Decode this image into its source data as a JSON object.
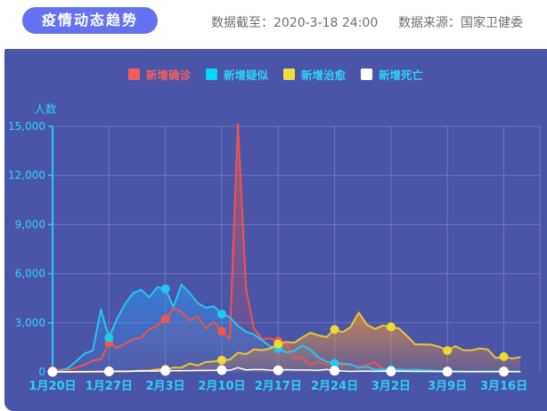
{
  "header": {
    "title": "疫情动态趋势",
    "data_cutoff": "数据截至：2020-3-18 24:00",
    "data_source": "数据来源：国家卫健委"
  },
  "colors": {
    "title_pill_bg": "#6372ee",
    "title_pill_text": "#ffffff",
    "header_meta_text": "#6e6e74",
    "panel_bg": "#4a55a8",
    "grid_line": "rgba(255,255,255,0.20)",
    "axis_line": "#29c8f0",
    "tick_text": "#2bd2f4"
  },
  "chart_data": {
    "type": "line",
    "title": "疫情动态趋势",
    "ylabel": "人数",
    "ylim": [
      0,
      15000
    ],
    "grid": true,
    "legend_position": "top",
    "marker_every": 7,
    "y_ticks": [
      {
        "label": "0",
        "value": 0
      },
      {
        "label": "3,000",
        "value": 3000
      },
      {
        "label": "6,000",
        "value": 6000
      },
      {
        "label": "9,000",
        "value": 9000
      },
      {
        "label": "12,000",
        "value": 12000
      },
      {
        "label": "15,000",
        "value": 15000
      }
    ],
    "x_ticks": [
      {
        "label": "1月20日",
        "index": 0
      },
      {
        "label": "1月27日",
        "index": 7
      },
      {
        "label": "2月3日",
        "index": 14
      },
      {
        "label": "2月10日",
        "index": 21
      },
      {
        "label": "2月17日",
        "index": 28
      },
      {
        "label": "2月24日",
        "index": 35
      },
      {
        "label": "3月2日",
        "index": 42
      },
      {
        "label": "3月9日",
        "index": 49
      },
      {
        "label": "3月16日",
        "index": 56
      }
    ],
    "dates": [
      "1月20日",
      "1月21日",
      "1月22日",
      "1月23日",
      "1月24日",
      "1月25日",
      "1月26日",
      "1月27日",
      "1月28日",
      "1月29日",
      "1月30日",
      "1月31日",
      "2月1日",
      "2月2日",
      "2月3日",
      "2月4日",
      "2月5日",
      "2月6日",
      "2月7日",
      "2月8日",
      "2月9日",
      "2月10日",
      "2月11日",
      "2月12日",
      "2月13日",
      "2月14日",
      "2月15日",
      "2月16日",
      "2月17日",
      "2月18日",
      "2月19日",
      "2月20日",
      "2月21日",
      "2月22日",
      "2月23日",
      "2月24日",
      "2月25日",
      "2月26日",
      "2月27日",
      "2月28日",
      "2月29日",
      "3月1日",
      "3月2日",
      "3月3日",
      "3月4日",
      "3月5日",
      "3月6日",
      "3月7日",
      "3月8日",
      "3月9日",
      "3月10日",
      "3月11日",
      "3月12日",
      "3月13日",
      "3月14日",
      "3月15日",
      "3月16日",
      "3月17日",
      "3月18日"
    ],
    "series": [
      {
        "name": "新增确诊",
        "line_color": "#ef5350",
        "swatch_color": "#f25c5c",
        "label_color": "#f2605c",
        "marker_color": "#f25550",
        "area": true,
        "fill_top": "rgba(238,80,78,0.55)",
        "fill_bottom": "rgba(238,80,78,0.06)",
        "values": [
          77,
          149,
          131,
          259,
          444,
          688,
          769,
          1771,
          1459,
          1737,
          1982,
          2102,
          2590,
          2829,
          3235,
          3887,
          3694,
          3143,
          3399,
          2656,
          3062,
          2478,
          2015,
          15152,
          5090,
          2641,
          2009,
          2048,
          1886,
          1749,
          820,
          889,
          397,
          648,
          409,
          508,
          406,
          433,
          327,
          427,
          573,
          202,
          125,
          119,
          139,
          143,
          99,
          44,
          40,
          19,
          24,
          15,
          8,
          11,
          20,
          16,
          21,
          13,
          34
        ]
      },
      {
        "name": "新增疑似",
        "line_color": "#27c5ee",
        "swatch_color": "#00d8f8",
        "label_color": "#2bd2f4",
        "marker_color": "#1fc9f2",
        "area": true,
        "fill_top": "rgba(50,145,235,0.65)",
        "fill_bottom": "rgba(50,145,235,0.10)",
        "values": [
          27,
          53,
          257,
          680,
          1118,
          1309,
          3806,
          2077,
          3248,
          4148,
          4812,
          5019,
          4562,
          5173,
          5072,
          3971,
          5328,
          4833,
          4214,
          3916,
          4008,
          3536,
          3342,
          2807,
          2450,
          2277,
          1918,
          1563,
          1432,
          1185,
          1277,
          1614,
          1361,
          882,
          620,
          515,
          508,
          452,
          248,
          318,
          132,
          141,
          129,
          143,
          102,
          128,
          99,
          84,
          59,
          31,
          33,
          33,
          25,
          34,
          36,
          41,
          39,
          28,
          23
        ]
      },
      {
        "name": "新增治愈",
        "line_color": "#e7c735",
        "swatch_color": "#eedd40",
        "label_color": "#2bd2f4",
        "marker_color": "#f2d733",
        "area": true,
        "fill_top": "rgba(240,150,55,0.70)",
        "fill_bottom": "rgba(240,150,55,0.16)",
        "values": [
          0,
          6,
          3,
          6,
          3,
          11,
          9,
          12,
          43,
          21,
          47,
          72,
          85,
          147,
          157,
          262,
          261,
          510,
          387,
          600,
          632,
          716,
          744,
          1171,
          1081,
          1373,
          1323,
          1425,
          1701,
          1824,
          1779,
          2109,
          2393,
          2230,
          2120,
          2589,
          2422,
          2750,
          3622,
          2885,
          2623,
          2837,
          2742,
          2652,
          2189,
          1681,
          1678,
          1661,
          1535,
          1297,
          1578,
          1318,
          1318,
          1430,
          1373,
          838,
          930,
          819,
          893
        ]
      },
      {
        "name": "新增死亡",
        "line_color": "#ffffff",
        "swatch_color": "#ffffff",
        "label_color": "#2bd2f4",
        "marker_color": "#ffffff",
        "area": false,
        "fill_top": "rgba(255,255,255,0)",
        "fill_bottom": "rgba(255,255,255,0)",
        "values": [
          2,
          3,
          8,
          8,
          16,
          15,
          24,
          26,
          26,
          38,
          43,
          46,
          45,
          57,
          64,
          65,
          73,
          73,
          86,
          89,
          97,
          108,
          97,
          254,
          121,
          143,
          142,
          105,
          98,
          136,
          114,
          118,
          109,
          97,
          150,
          71,
          52,
          29,
          44,
          47,
          35,
          42,
          31,
          38,
          31,
          30,
          28,
          27,
          22,
          17,
          22,
          11,
          7,
          13,
          10,
          14,
          13,
          11,
          8
        ]
      }
    ]
  }
}
